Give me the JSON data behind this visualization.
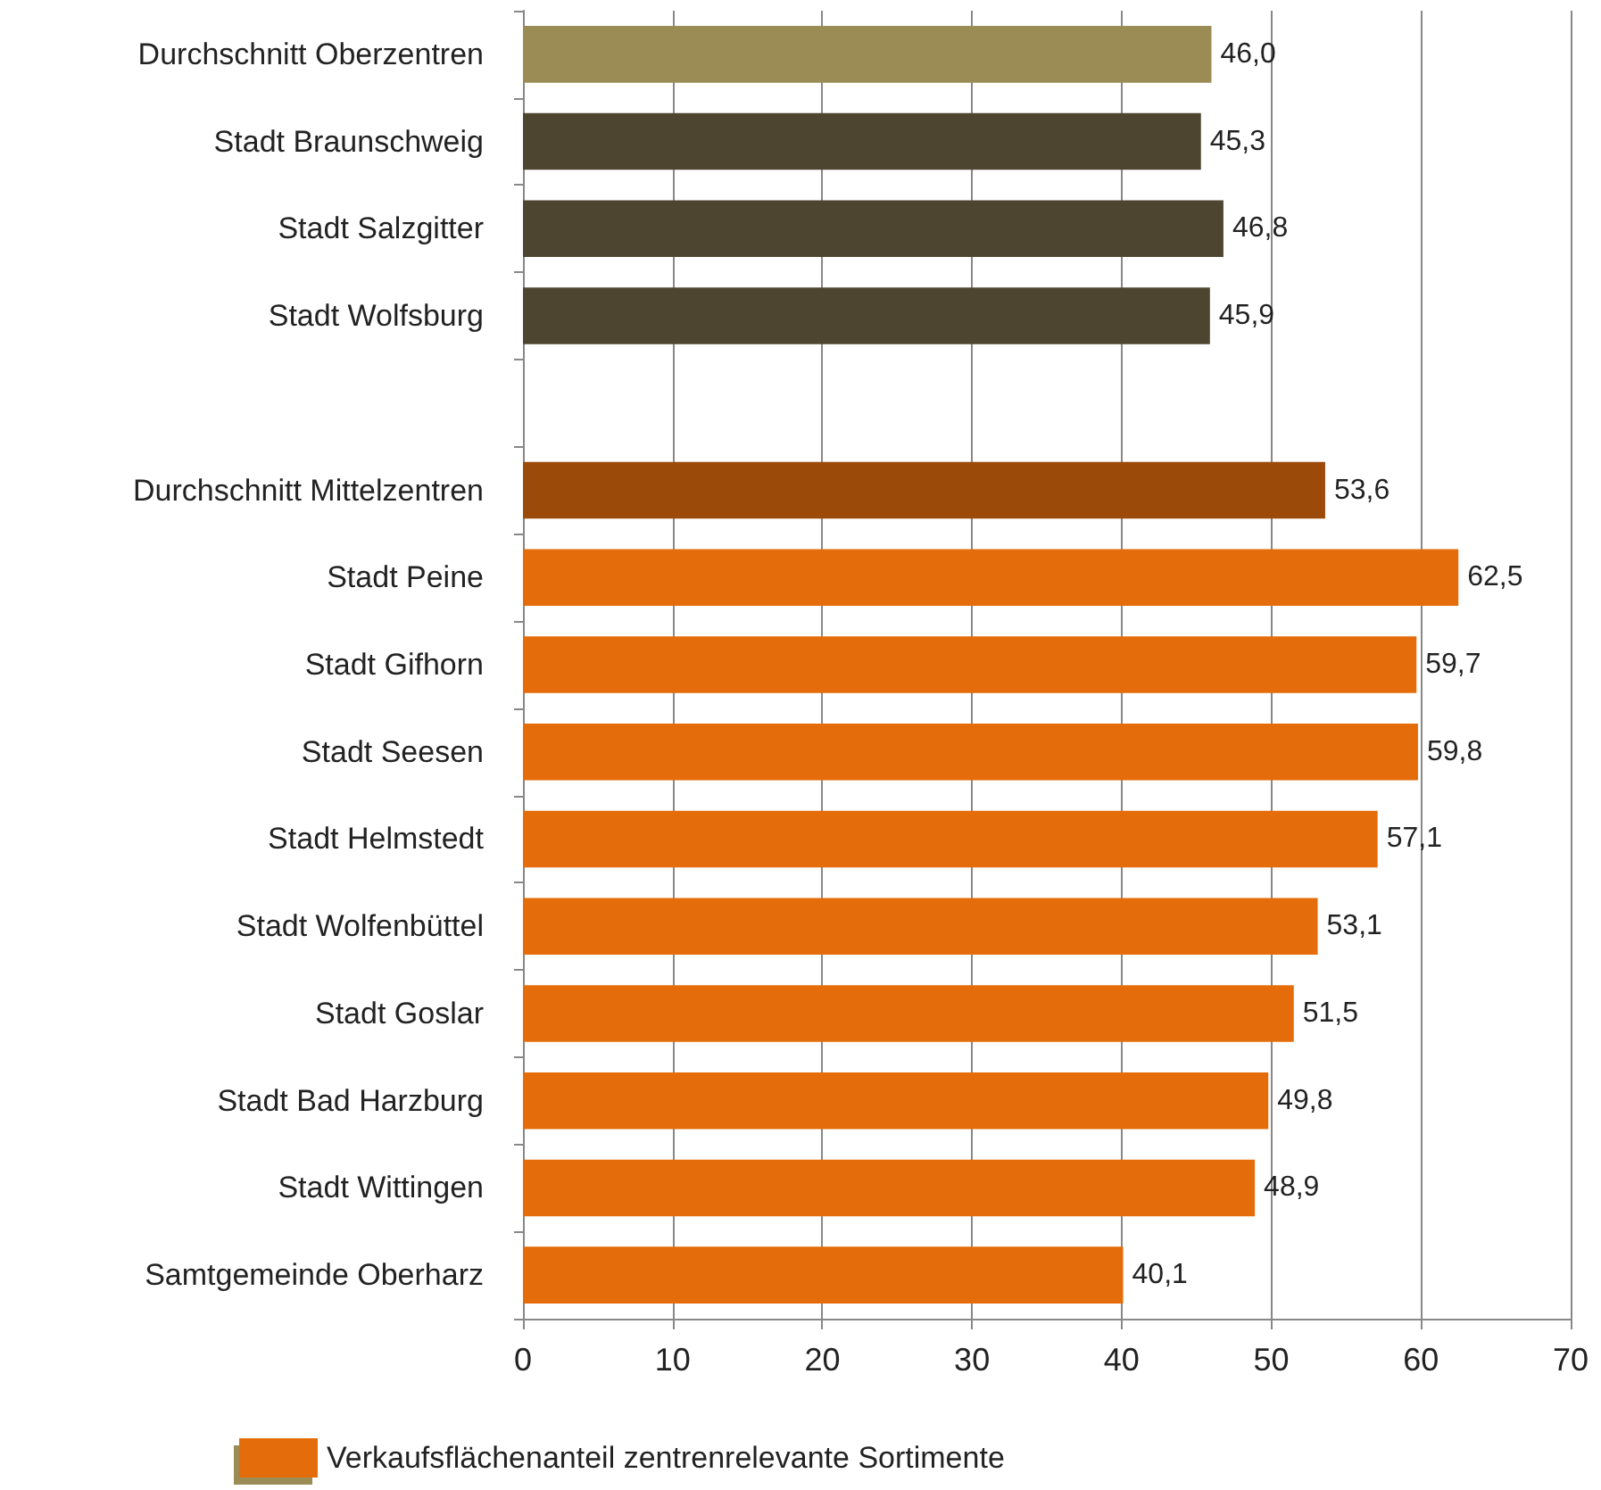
{
  "chart_data": {
    "type": "bar",
    "orientation": "horizontal",
    "categories": [
      "Durchschnitt Oberzentren",
      "Stadt Braunschweig",
      "Stadt Salzgitter",
      "Stadt Wolfsburg",
      null,
      "Durchschnitt Mittelzentren",
      "Stadt Peine",
      "Stadt Gifhorn",
      "Stadt Seesen",
      "Stadt Helmstedt",
      "Stadt Wolfenbüttel",
      "Stadt Goslar",
      "Stadt Bad Harzburg",
      "Stadt Wittingen",
      "Samtgemeinde Oberharz"
    ],
    "series": [
      {
        "name": "Verkaufsflächenanteil zentrenrelevante Sortimente",
        "color": "#e46c0a",
        "colors": [
          "#9b8c55",
          "#4d4530",
          "#4d4530",
          "#4d4530",
          null,
          "#9c4a0a",
          "#e46c0a",
          "#e46c0a",
          "#e46c0a",
          "#e46c0a",
          "#e46c0a",
          "#e46c0a",
          "#e46c0a",
          "#e46c0a",
          "#e46c0a"
        ],
        "values": [
          46.0,
          45.3,
          46.8,
          45.9,
          null,
          53.6,
          62.5,
          59.7,
          59.8,
          57.1,
          53.1,
          51.5,
          49.8,
          48.9,
          40.1
        ],
        "value_labels": [
          "46,0",
          "45,3",
          "46,8",
          "45,9",
          null,
          "53,6",
          "62,5",
          "59,7",
          "59,8",
          "57,1",
          "53,1",
          "51,5",
          "49,8",
          "48,9",
          "40,1"
        ]
      }
    ],
    "xlim": [
      0,
      70
    ],
    "xticks": [
      0,
      10,
      20,
      30,
      40,
      50,
      60,
      70
    ],
    "grid": "x",
    "legend": "bottom"
  }
}
